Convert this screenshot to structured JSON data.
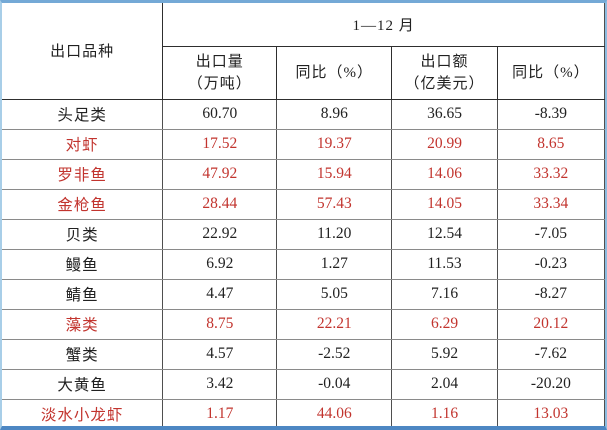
{
  "colors": {
    "highlight_red": "#c2342e",
    "text_black": "#212121",
    "frame_blue": "#74a9d6",
    "grid_grey": "#8a8a8a"
  },
  "table": {
    "col1_header": "出口品种",
    "period_header": "1—12 月",
    "sub_headers": [
      {
        "line1": "出口量",
        "line2": "（万吨）"
      },
      {
        "line1": "同比（%）",
        "line2": ""
      },
      {
        "line1": "出口额",
        "line2": "（亿美元）"
      },
      {
        "line1": "同比（%）",
        "line2": ""
      }
    ],
    "rows": [
      {
        "name": "头足类",
        "highlight": false,
        "cells": [
          "60.70",
          "8.96",
          "36.65",
          "-8.39"
        ]
      },
      {
        "name": "对虾",
        "highlight": true,
        "cells": [
          "17.52",
          "19.37",
          "20.99",
          "8.65"
        ]
      },
      {
        "name": "罗非鱼",
        "highlight": true,
        "cells": [
          "47.92",
          "15.94",
          "14.06",
          "33.32"
        ]
      },
      {
        "name": "金枪鱼",
        "highlight": true,
        "cells": [
          "28.44",
          "57.43",
          "14.05",
          "33.34"
        ]
      },
      {
        "name": "贝类",
        "highlight": false,
        "cells": [
          "22.92",
          "11.20",
          "12.54",
          "-7.05"
        ]
      },
      {
        "name": "鳗鱼",
        "highlight": false,
        "cells": [
          "6.92",
          "1.27",
          "11.53",
          "-0.23"
        ]
      },
      {
        "name": "鲭鱼",
        "highlight": false,
        "cells": [
          "4.47",
          "5.05",
          "7.16",
          "-8.27"
        ]
      },
      {
        "name": "藻类",
        "highlight": true,
        "cells": [
          "8.75",
          "22.21",
          "6.29",
          "20.12"
        ]
      },
      {
        "name": "蟹类",
        "highlight": false,
        "cells": [
          "4.57",
          "-2.52",
          "5.92",
          "-7.62"
        ]
      },
      {
        "name": "大黄鱼",
        "highlight": false,
        "cells": [
          "3.42",
          "-0.04",
          "2.04",
          "-20.20"
        ]
      },
      {
        "name": "淡水小龙虾",
        "highlight": true,
        "cells": [
          "1.17",
          "44.06",
          "1.16",
          "13.03"
        ]
      }
    ]
  }
}
